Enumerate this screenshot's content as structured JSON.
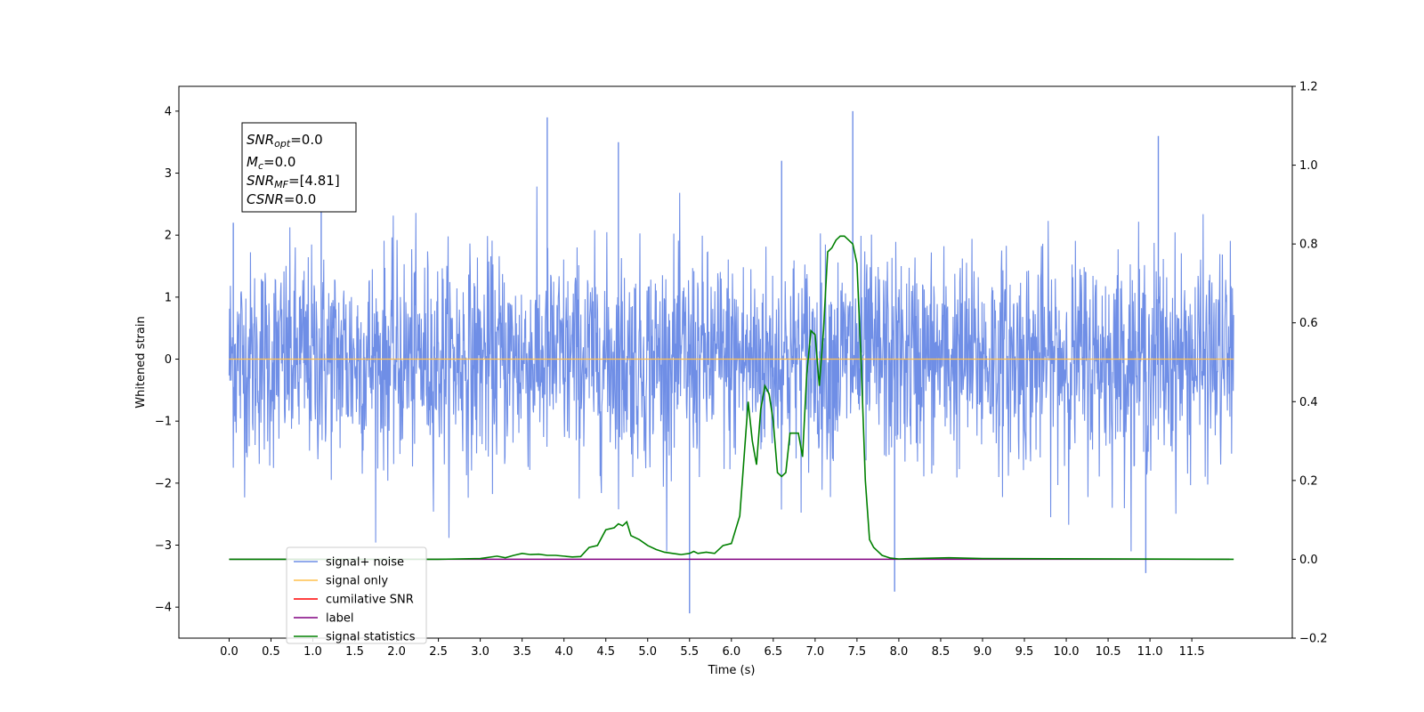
{
  "chart_data": {
    "type": "line",
    "xlabel": "Time (s)",
    "ylabel": "Whitened strain",
    "xlim": [
      -0.6,
      12.7
    ],
    "ylim": [
      -4.5,
      4.4
    ],
    "ylim_right": [
      -0.2,
      1.2
    ],
    "x_ticks": [
      "0.0",
      "0.5",
      "1.0",
      "1.5",
      "2.0",
      "2.5",
      "3.0",
      "3.5",
      "4.0",
      "4.5",
      "5.0",
      "5.5",
      "6.0",
      "6.5",
      "7.0",
      "7.5",
      "8.0",
      "8.5",
      "9.0",
      "9.5",
      "10.0",
      "10.5",
      "11.0",
      "11.5"
    ],
    "y_ticks": [
      "4",
      "3",
      "2",
      "1",
      "0",
      "−1",
      "−2",
      "−3",
      "−4"
    ],
    "y_ticks_right": [
      "1.2",
      "1.0",
      "0.8",
      "0.6",
      "0.4",
      "0.2",
      "0.0",
      "−0.2"
    ],
    "grid": false,
    "legend_position": "lower-left",
    "annotation": {
      "snr_opt_base": "SNR",
      "snr_opt_sub": "opt",
      "snr_opt_val": "=0.0",
      "mc_base": "M",
      "mc_sub": "c",
      "mc_val": "=0.0",
      "snr_mf_base": "SNR",
      "snr_mf_sub": "MF",
      "snr_mf_val": "=[4.81]",
      "csnr_base": "CSNR",
      "csnr_val": "=0.0"
    },
    "series": [
      {
        "name": "signal+ noise",
        "color": "#6f8ee6",
        "axis": "left",
        "t_range": [
          0.0,
          12.0
        ],
        "std": 0.85,
        "peaks": [
          [
            0.05,
            2.2
          ],
          [
            1.1,
            2.6
          ],
          [
            3.8,
            3.9
          ],
          [
            4.65,
            3.5
          ],
          [
            5.5,
            -4.1
          ],
          [
            6.6,
            3.2
          ],
          [
            7.45,
            4.0
          ],
          [
            7.95,
            -3.75
          ],
          [
            10.95,
            -3.45
          ],
          [
            11.1,
            3.6
          ]
        ]
      },
      {
        "name": "signal only",
        "color": "#ffc04d",
        "axis": "left",
        "value": 0.0
      },
      {
        "name": "cumilative SNR",
        "color": "#ff0000",
        "axis": "left"
      },
      {
        "name": "label",
        "color": "#800080",
        "axis": "right",
        "value": 0.0
      },
      {
        "name": "signal statistics",
        "color": "#008000",
        "axis": "right",
        "x": [
          0.0,
          2.5,
          3.0,
          3.2,
          3.3,
          3.4,
          3.5,
          3.6,
          3.7,
          3.8,
          3.9,
          4.0,
          4.1,
          4.2,
          4.3,
          4.4,
          4.5,
          4.6,
          4.65,
          4.7,
          4.75,
          4.8,
          4.9,
          5.0,
          5.1,
          5.2,
          5.3,
          5.4,
          5.5,
          5.55,
          5.6,
          5.7,
          5.8,
          5.9,
          6.0,
          6.1,
          6.2,
          6.25,
          6.3,
          6.35,
          6.4,
          6.45,
          6.5,
          6.55,
          6.6,
          6.65,
          6.7,
          6.8,
          6.85,
          6.9,
          6.95,
          7.0,
          7.05,
          7.1,
          7.15,
          7.2,
          7.25,
          7.3,
          7.35,
          7.4,
          7.45,
          7.5,
          7.55,
          7.6,
          7.65,
          7.7,
          7.75,
          7.8,
          7.9,
          8.0,
          8.6,
          9.0,
          12.0
        ],
        "y": [
          0.0,
          0.0,
          0.002,
          0.008,
          0.004,
          0.01,
          0.015,
          0.012,
          0.013,
          0.01,
          0.01,
          0.008,
          0.006,
          0.007,
          0.03,
          0.035,
          0.075,
          0.08,
          0.09,
          0.085,
          0.095,
          0.06,
          0.05,
          0.035,
          0.025,
          0.018,
          0.015,
          0.012,
          0.015,
          0.02,
          0.015,
          0.018,
          0.015,
          0.035,
          0.04,
          0.11,
          0.4,
          0.3,
          0.24,
          0.38,
          0.44,
          0.42,
          0.35,
          0.22,
          0.21,
          0.22,
          0.32,
          0.32,
          0.26,
          0.47,
          0.58,
          0.57,
          0.44,
          0.58,
          0.78,
          0.79,
          0.81,
          0.82,
          0.82,
          0.81,
          0.8,
          0.75,
          0.5,
          0.2,
          0.05,
          0.03,
          0.02,
          0.01,
          0.003,
          0.001,
          0.004,
          0.002,
          0.0
        ]
      }
    ]
  }
}
